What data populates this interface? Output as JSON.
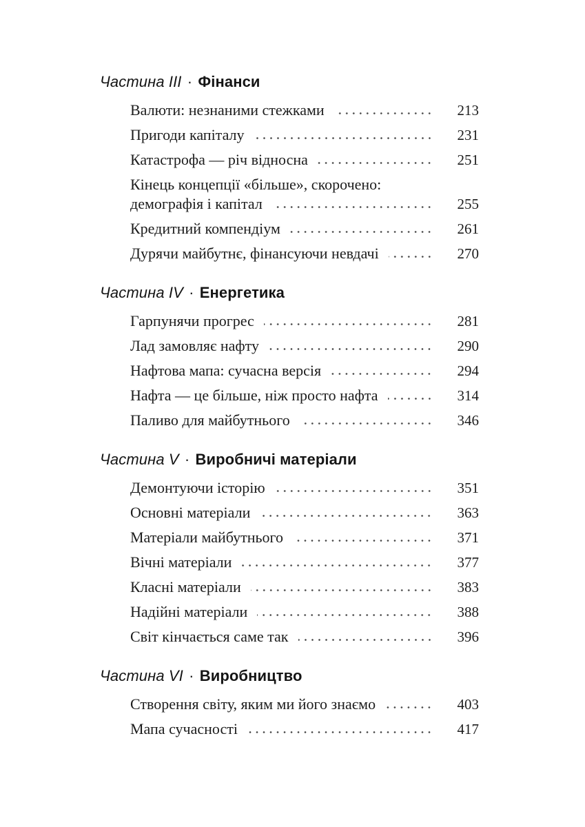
{
  "page": {
    "background_color": "#ffffff",
    "text_color": "#1c1c1c",
    "dot_leader_color": "#474747"
  },
  "toc": {
    "separator": "·",
    "parts": [
      {
        "label": "Частина III",
        "title": "Фінанси",
        "entries": [
          {
            "title": "Валюти: незнаними стежками",
            "page": "213"
          },
          {
            "title": "Пригоди капіталу",
            "page": "231"
          },
          {
            "title": "Катастрофа — річ відносна",
            "page": "251"
          },
          {
            "title": "Кінець концепції «більше», скорочено:",
            "title2": "демографія і капітал",
            "page": "255"
          },
          {
            "title": "Кредитний компендіум",
            "page": "261"
          },
          {
            "title": "Дурячи майбутнє, фінансуючи невдачі",
            "page": "270"
          }
        ]
      },
      {
        "label": "Частина IV",
        "title": "Енергетика",
        "entries": [
          {
            "title": "Гарпунячи прогрес",
            "page": "281"
          },
          {
            "title": "Лад замовляє нафту",
            "page": "290"
          },
          {
            "title": "Нафтова мапа: сучасна версія",
            "page": "294"
          },
          {
            "title": "Нафта — це більше, ніж просто нафта",
            "page": "314"
          },
          {
            "title": "Паливо для майбутнього",
            "page": "346"
          }
        ]
      },
      {
        "label": "Частина V",
        "title": "Виробничі матеріали",
        "entries": [
          {
            "title": "Демонтуючи історію",
            "page": "351"
          },
          {
            "title": "Основні матеріали",
            "page": "363"
          },
          {
            "title": "Матеріали майбутнього",
            "page": "371"
          },
          {
            "title": "Вічні матеріали",
            "page": "377"
          },
          {
            "title": "Класні матеріали",
            "page": "383"
          },
          {
            "title": "Надійні матеріали",
            "page": "388"
          },
          {
            "title": "Світ кінчається саме так",
            "page": "396"
          }
        ]
      },
      {
        "label": "Частина VI",
        "title": "Виробництво",
        "entries": [
          {
            "title": "Створення світу, яким ми його знаємо",
            "page": "403"
          },
          {
            "title": "Мапа сучасності",
            "page": "417"
          }
        ]
      }
    ]
  }
}
